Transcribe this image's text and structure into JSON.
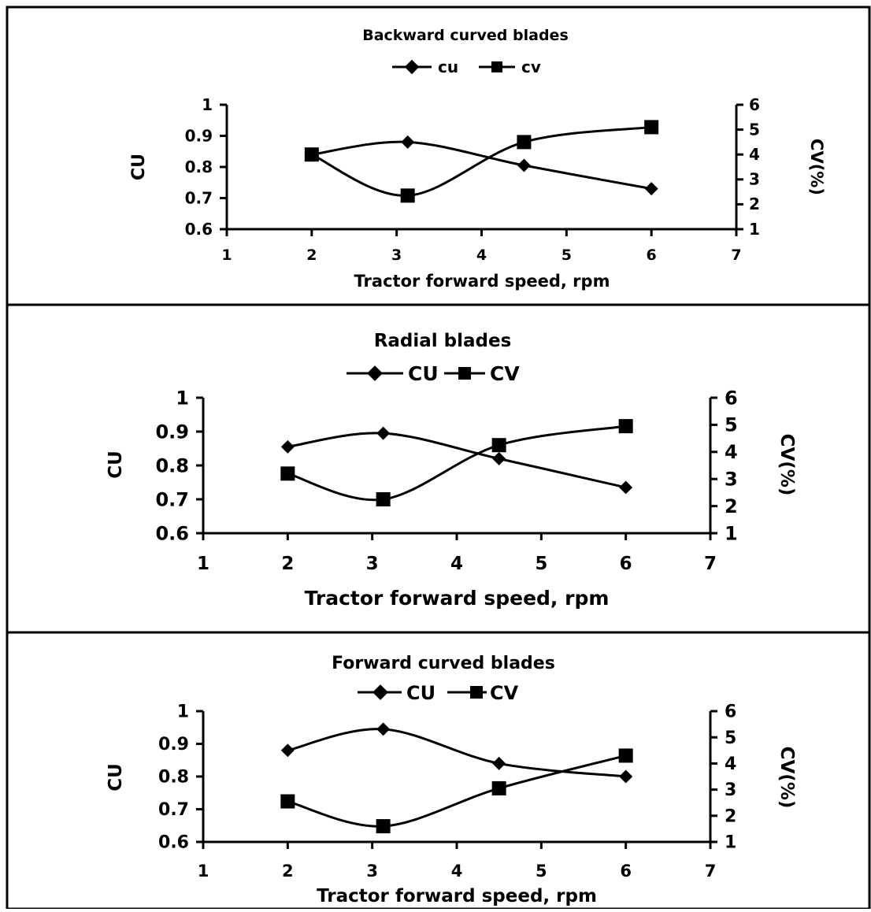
{
  "chart_data": [
    {
      "type": "line",
      "title": "Backward curved blades",
      "xlabel": "Tractor forward speed, rpm",
      "ylabel": "CU",
      "y2label": "CV(%)",
      "xlim": [
        1,
        7
      ],
      "ylim": [
        0.6,
        1.0
      ],
      "y2lim": [
        1,
        6
      ],
      "x_ticks": [
        "1",
        "2",
        "3",
        "4",
        "5",
        "6",
        "7"
      ],
      "y_ticks": [
        "0.6",
        "0.7",
        "0.8",
        "0.9",
        "1"
      ],
      "y2_ticks": [
        "1",
        "2",
        "3",
        "4",
        "5",
        "6"
      ],
      "legend_position": "top-center",
      "series": [
        {
          "name": "cu",
          "axis": "left",
          "marker": "diamond",
          "x": [
            2,
            3.13,
            4.5,
            6
          ],
          "values": [
            0.84,
            0.88,
            0.805,
            0.73
          ]
        },
        {
          "name": "cv",
          "axis": "right",
          "marker": "square",
          "x": [
            2,
            3.13,
            4.5,
            6
          ],
          "values": [
            4.0,
            2.35,
            4.5,
            5.1
          ]
        }
      ]
    },
    {
      "type": "line",
      "title": "Radial blades",
      "xlabel": "Tractor forward speed, rpm",
      "ylabel": "CU",
      "y2label": "CV(%)",
      "xlim": [
        1,
        7
      ],
      "ylim": [
        0.6,
        1.0
      ],
      "y2lim": [
        1,
        6
      ],
      "x_ticks": [
        "1",
        "2",
        "3",
        "4",
        "5",
        "6",
        "7"
      ],
      "y_ticks": [
        "0.6",
        "0.7",
        "0.8",
        "0.9",
        "1"
      ],
      "y2_ticks": [
        "1",
        "2",
        "3",
        "4",
        "5",
        "6"
      ],
      "legend_position": "top-center",
      "series": [
        {
          "name": "CU",
          "axis": "left",
          "marker": "diamond",
          "x": [
            2,
            3.13,
            4.5,
            6
          ],
          "values": [
            0.855,
            0.895,
            0.82,
            0.735
          ]
        },
        {
          "name": "CV",
          "axis": "right",
          "marker": "square",
          "x": [
            2,
            3.13,
            4.5,
            6
          ],
          "values": [
            3.2,
            2.25,
            4.25,
            4.95
          ]
        }
      ]
    },
    {
      "type": "line",
      "title": "Forward curved blades",
      "xlabel": "Tractor forward speed, rpm",
      "ylabel": "CU",
      "y2label": "CV(%)",
      "xlim": [
        1,
        7
      ],
      "ylim": [
        0.6,
        1.0
      ],
      "y2lim": [
        1,
        6
      ],
      "x_ticks": [
        "1",
        "2",
        "3",
        "4",
        "5",
        "6",
        "7"
      ],
      "y_ticks": [
        "0.6",
        "0.7",
        "0.8",
        "0.9",
        "1"
      ],
      "y2_ticks": [
        "1",
        "2",
        "3",
        "4",
        "5",
        "6"
      ],
      "legend_position": "top-center",
      "series": [
        {
          "name": "CU",
          "axis": "left",
          "marker": "diamond",
          "x": [
            2,
            3.13,
            4.5,
            6
          ],
          "values": [
            0.88,
            0.945,
            0.84,
            0.8
          ]
        },
        {
          "name": "CV",
          "axis": "right",
          "marker": "square",
          "x": [
            2,
            3.13,
            4.5,
            6
          ],
          "values": [
            2.55,
            1.6,
            3.05,
            4.3
          ]
        }
      ]
    }
  ]
}
